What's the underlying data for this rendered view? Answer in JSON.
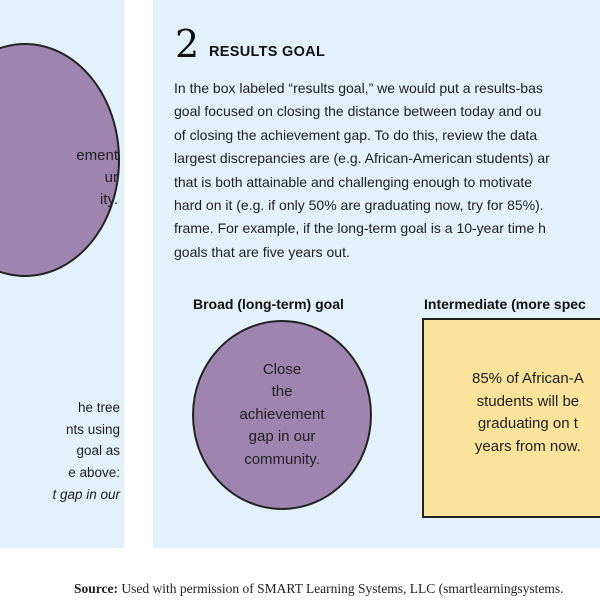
{
  "left_panel": {
    "circle_text": "ement\nur\nity.",
    "tail_lines": [
      "he tree",
      "nts using",
      "goal as",
      "e above:",
      "t gap in our"
    ]
  },
  "results_section": {
    "step_number": "2",
    "title": "RESULTS GOAL",
    "body_lines": [
      "In the box labeled “results goal,” we would put a results-bas",
      "goal focused on closing the distance between today and ou",
      "of closing the achievement gap. To do this, review the data",
      "largest discrepancies are (e.g. African-American students) ar",
      "that is both attainable and challenging enough to motivate",
      "hard on it (e.g. if only 50% are graduating now, try for 85%).",
      "frame. For example, if the long-term goal is a 10-year time h",
      "goals that are five years out."
    ],
    "broad_goal_heading": "Broad (long-term) goal",
    "broad_goal_text": "Close\nthe\nachievement\ngap in our\ncommunity.",
    "intermediate_heading": "Intermediate (more spec",
    "intermediate_text": "85% of African-A\nstudents will be\ngraduating on t\nyears from now."
  },
  "source": {
    "label": "Source:",
    "text": "Used with permission of SMART Learning Systems, LLC (smartlearningsystems."
  },
  "colors": {
    "panel_background": "#e3f1fb",
    "circle_fill": "#a084b0",
    "box_fill": "#fbe39c"
  }
}
